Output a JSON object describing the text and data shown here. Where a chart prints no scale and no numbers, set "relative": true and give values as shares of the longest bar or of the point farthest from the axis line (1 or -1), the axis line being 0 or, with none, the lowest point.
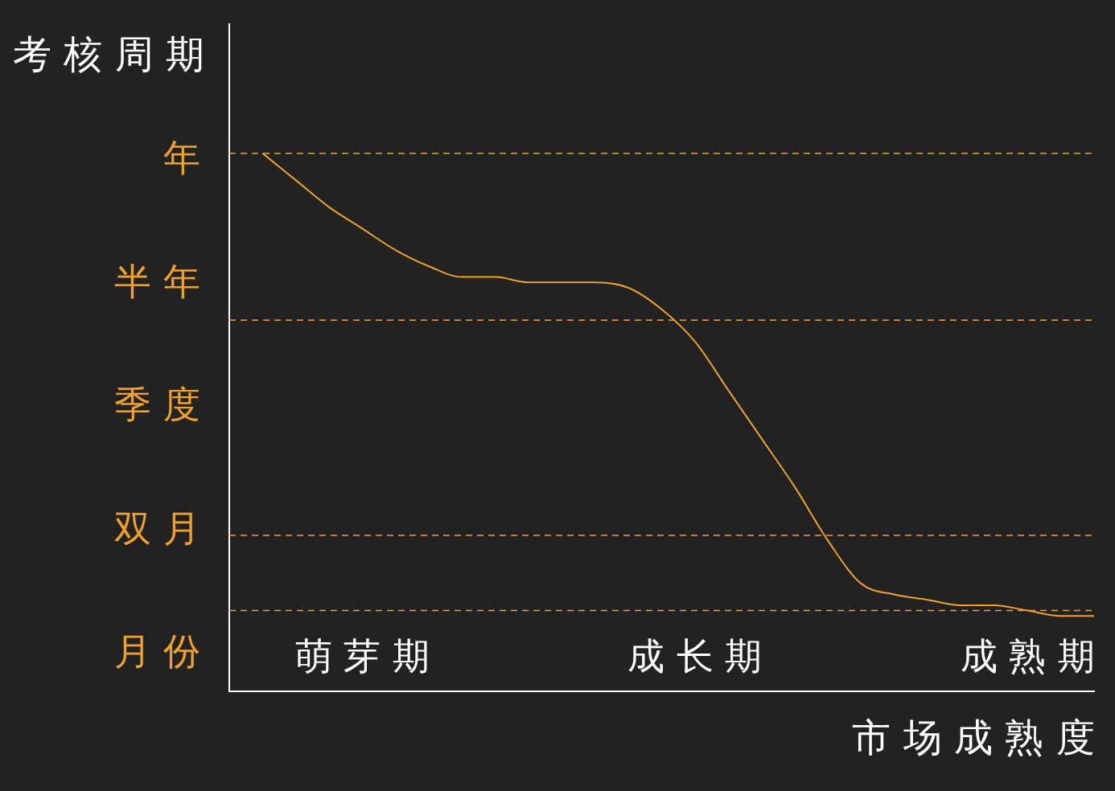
{
  "chart_data": {
    "type": "line",
    "relative": true,
    "xlabel": "市场成熟度",
    "ylabel": "考核周期",
    "categories": [
      null,
      null,
      null,
      null,
      "萌芽期",
      null,
      null,
      null,
      null,
      null,
      null,
      null,
      null,
      null,
      "成长期",
      null,
      null,
      null,
      null,
      null,
      null,
      null,
      null,
      null,
      "成熟期",
      null,
      null
    ],
    "series": [
      {
        "color": "#f0a030",
        "values": [
          null,
          1.0,
          0.95,
          0.9,
          0.86,
          0.82,
          0.79,
          0.77,
          0.77,
          0.76,
          0.76,
          0.76,
          0.75,
          0.71,
          0.65,
          0.56,
          0.47,
          0.38,
          0.28,
          0.2,
          0.18,
          0.17,
          0.16,
          0.16,
          0.15,
          0.14,
          0.14
        ]
      }
    ],
    "ref_lines": [
      {
        "axis": "y",
        "value": 1.0,
        "color": "#f0a030",
        "line_style": "dashed"
      },
      {
        "axis": "y",
        "value": 0.69,
        "color": "#f0a030",
        "line_style": "dashed"
      },
      {
        "axis": "y",
        "value": 0.29,
        "color": "#f0a030",
        "line_style": "dashed"
      },
      {
        "axis": "y",
        "value": 0.15,
        "color": "#f0a030",
        "line_style": "dashed"
      }
    ],
    "annotations": [
      "年",
      "半年",
      "季度",
      "双月",
      "月份"
    ],
    "grid": false,
    "legend": false,
    "marker": "none"
  }
}
